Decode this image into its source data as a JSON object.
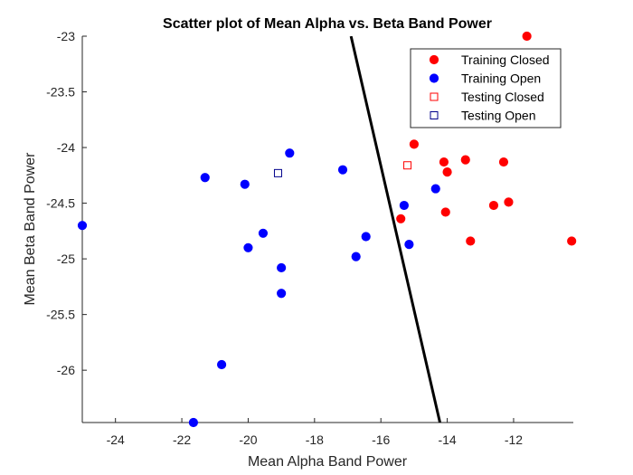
{
  "chart_data": {
    "type": "scatter",
    "title": "Scatter plot of Mean Alpha vs. Beta Band Power",
    "xlabel": "Mean Alpha Band Power",
    "ylabel": "Mean Beta Band Power",
    "xlim": [
      -25,
      -10.2
    ],
    "ylim": [
      -26.47,
      -23
    ],
    "xticks": [
      -24,
      -22,
      -20,
      -18,
      -16,
      -14,
      -12
    ],
    "xtick_labels": [
      "-24",
      "-22",
      "-20",
      "-18",
      "-16",
      "-14",
      "-12"
    ],
    "yticks": [
      -23,
      -23.5,
      -24,
      -24.5,
      -25,
      -25.5,
      -26
    ],
    "ytick_labels": [
      "-23",
      "-23.5",
      "-24",
      "-24.5",
      "-25",
      "-25.5",
      "-26"
    ],
    "grid": false,
    "legend_position": "top-right",
    "series": [
      {
        "name": "Training Closed",
        "marker": "filled-circle",
        "color": "#ff0000",
        "points": [
          [
            -11.6,
            -23.0
          ],
          [
            -15.0,
            -23.97
          ],
          [
            -14.1,
            -24.13
          ],
          [
            -14.0,
            -24.22
          ],
          [
            -13.45,
            -24.11
          ],
          [
            -12.3,
            -24.13
          ],
          [
            -15.4,
            -24.64
          ],
          [
            -14.05,
            -24.58
          ],
          [
            -12.6,
            -24.52
          ],
          [
            -12.15,
            -24.49
          ],
          [
            -13.3,
            -24.84
          ],
          [
            -10.25,
            -24.84
          ]
        ]
      },
      {
        "name": "Training Open",
        "marker": "filled-circle",
        "color": "#0000ff",
        "points": [
          [
            -25.0,
            -24.7
          ],
          [
            -21.3,
            -24.27
          ],
          [
            -20.1,
            -24.33
          ],
          [
            -18.75,
            -24.05
          ],
          [
            -17.15,
            -24.2
          ],
          [
            -14.35,
            -24.37
          ],
          [
            -15.3,
            -24.52
          ],
          [
            -15.15,
            -24.87
          ],
          [
            -16.45,
            -24.8
          ],
          [
            -16.75,
            -24.98
          ],
          [
            -19.55,
            -24.77
          ],
          [
            -20.0,
            -24.9
          ],
          [
            -19.0,
            -25.08
          ],
          [
            -19.0,
            -25.31
          ],
          [
            -20.8,
            -25.95
          ],
          [
            -21.65,
            -26.47
          ]
        ]
      },
      {
        "name": "Testing Closed",
        "marker": "open-square",
        "color": "#ff0000",
        "points": [
          [
            -15.2,
            -24.16
          ]
        ]
      },
      {
        "name": "Testing Open",
        "marker": "open-square",
        "color": "#00008b",
        "points": [
          [
            -19.1,
            -24.23
          ]
        ]
      }
    ],
    "boundary_line": {
      "color": "#000000",
      "points": [
        [
          -16.9,
          -23.0
        ],
        [
          -14.22,
          -26.47
        ]
      ]
    }
  }
}
